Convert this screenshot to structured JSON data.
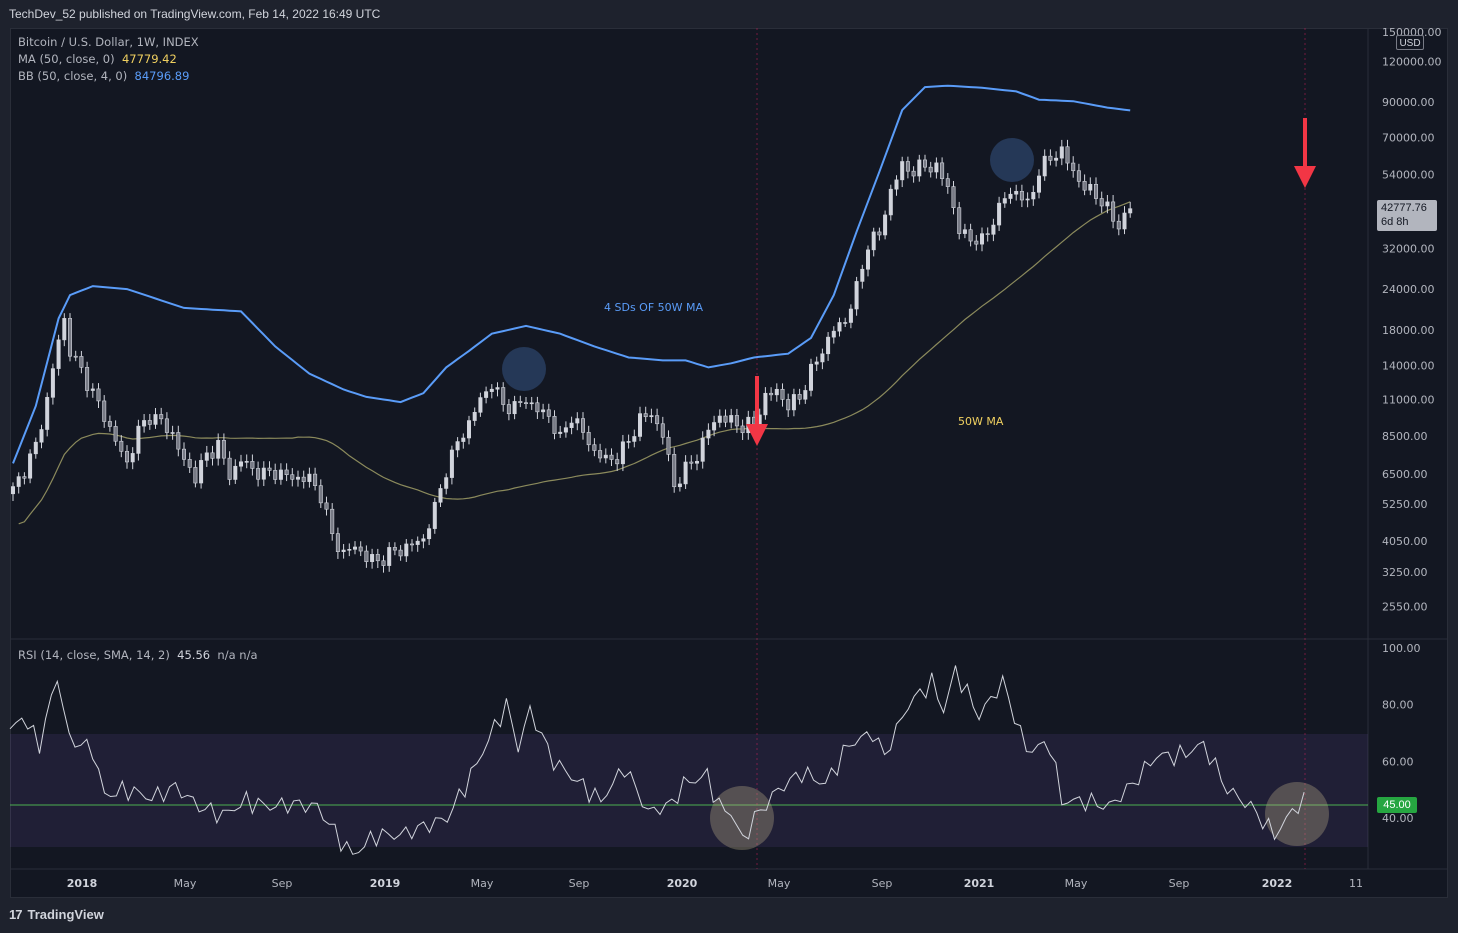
{
  "header": {
    "publish_text": "TechDev_52 published on TradingView.com, Feb 14, 2022 16:49 UTC"
  },
  "legend": {
    "symbol": "Bitcoin / U.S. Dollar, 1W, INDEX",
    "ma_label": "MA (50, close, 0)",
    "ma_value": "47779.42",
    "bb_label": "BB (50, close, 4, 0)",
    "bb_value": "84796.89",
    "rsi_label": "RSI (14, close, SMA, 14, 2)",
    "rsi_value": "45.56",
    "rsi_na": "n/a  n/a"
  },
  "price_axis": {
    "currency": "USD",
    "last_price": "42777.76",
    "countdown": "6d 8h"
  },
  "rsi_axis": {
    "current_label": "45.00"
  },
  "annotations": {
    "bb_label": "4 SDs OF 50W MA",
    "ma_label": "50W MA"
  },
  "brand": {
    "name": "TradingView"
  },
  "colors": {
    "upper_band": "#5a9cf8",
    "ma": "#8b8a5c",
    "candles": "#d1d4dc",
    "arrow": "#f23645",
    "rsi_line": "#d1d4dc",
    "rsi_band": "#7e57c2",
    "rsi_level": "#4caf50"
  },
  "chart_data": [
    {
      "type": "candlestick",
      "title": "Bitcoin / U.S. Dollar, 1W, INDEX",
      "scale": "log",
      "y_ticks": [
        "150000.00",
        "120000.00",
        "90000.00",
        "70000.00",
        "54000.00",
        "42000.00",
        "32000.00",
        "24000.00",
        "18000.00",
        "14000.00",
        "11000.00",
        "8500.00",
        "6500.00",
        "5250.00",
        "4050.00",
        "3250.00",
        "2550.00"
      ],
      "x_ticks": [
        "2018",
        "May",
        "Sep",
        "2019",
        "May",
        "Sep",
        "2020",
        "May",
        "Sep",
        "2021",
        "May",
        "Sep",
        "2022",
        "11"
      ],
      "series": [
        {
          "name": "MA (50, close, 0)",
          "last": 47779.42
        },
        {
          "name": "BB (50, close, 4, 0)",
          "last": 84796.89
        }
      ],
      "last_close": 42777.76
    },
    {
      "type": "line",
      "title": "RSI (14, close, SMA, 14, 2)",
      "y_ticks": [
        "100.00",
        "80.00",
        "60.00",
        "40.00"
      ],
      "band": [
        30,
        70
      ],
      "level": 45,
      "last": 45.56
    }
  ]
}
